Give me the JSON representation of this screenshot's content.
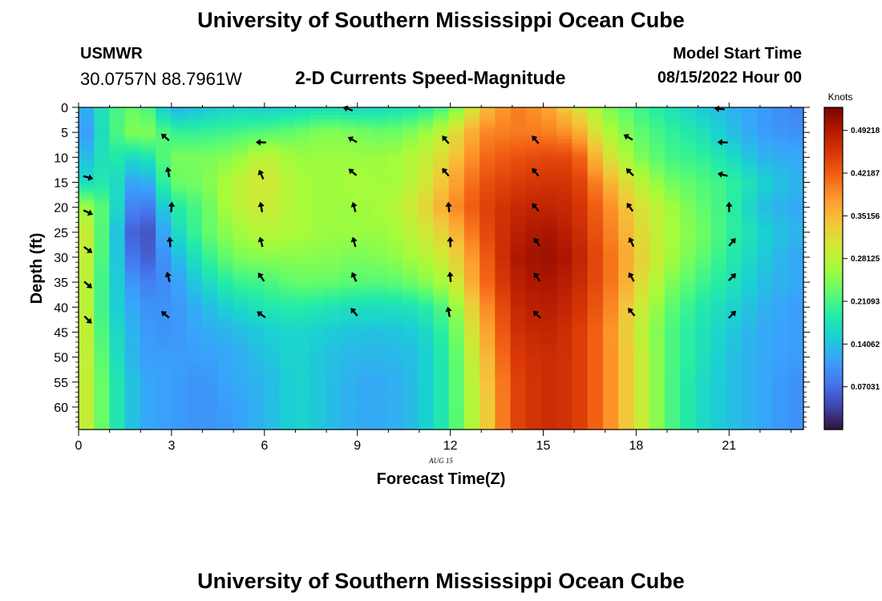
{
  "page": {
    "title": "University of Southern Mississippi Ocean Cube",
    "station": "USMWR",
    "coordinates": "30.0757N  88.7961W",
    "model_start_label": "Model Start Time",
    "model_start_value": "08/15/2022 Hour 00",
    "date_annotation": "AUG 15",
    "footer_title": "University of Southern Mississippi Ocean Cube"
  },
  "chart_data": {
    "type": "heatmap",
    "title": "2-D Currents Speed-Magnitude",
    "xlabel": "Forecast Time(Z)",
    "ylabel": "Depth (ft)",
    "xlim": [
      0,
      23.4
    ],
    "ylim": [
      0,
      64.5
    ],
    "x_ticks": [
      0,
      3,
      6,
      9,
      12,
      15,
      18,
      21
    ],
    "y_ticks": [
      0,
      5,
      10,
      15,
      20,
      25,
      30,
      35,
      40,
      45,
      50,
      55,
      60
    ],
    "colorbar": {
      "label": "Knots",
      "range": [
        0,
        0.53
      ],
      "ticks": [
        "0.49218",
        "0.42187",
        "0.35156",
        "0.28125",
        "0.21093",
        "0.14062",
        "0.07031"
      ],
      "tick_values": [
        0.49218,
        0.42187,
        0.35156,
        0.28125,
        0.21093,
        0.14062,
        0.07031
      ],
      "colors": [
        "#30123b",
        "#4145ab",
        "#4675ed",
        "#39a2fc",
        "#1bcfd4",
        "#24eca6",
        "#61fc6c",
        "#a4fc3b",
        "#d1e834",
        "#f3c63a",
        "#fe9b2d",
        "#f36315",
        "#d93806",
        "#b11901",
        "#7a0403"
      ]
    },
    "speed_profiles": {
      "depths": [
        0,
        5,
        10,
        15,
        20,
        25,
        30,
        35,
        40,
        45,
        50,
        55,
        60,
        64.5
      ],
      "times": [
        0.0,
        1.0,
        2.0,
        3.0,
        4.0,
        5.0,
        6.0,
        7.0,
        8.0,
        9.0,
        10.0,
        11.0,
        12.0,
        13.0,
        14.0,
        15.0,
        16.0,
        17.0,
        18.0,
        19.0,
        20.0,
        21.0,
        22.0,
        23.0
      ],
      "values": [
        [
          0.1,
          0.2,
          0.24,
          0.12,
          0.14,
          0.16,
          0.15,
          0.16,
          0.17,
          0.16,
          0.17,
          0.18,
          0.22,
          0.34,
          0.4,
          0.38,
          0.32,
          0.25,
          0.21,
          0.18,
          0.15,
          0.13,
          0.11,
          0.09
        ],
        [
          0.08,
          0.2,
          0.26,
          0.2,
          0.2,
          0.21,
          0.22,
          0.23,
          0.25,
          0.24,
          0.23,
          0.25,
          0.3,
          0.39,
          0.4,
          0.4,
          0.38,
          0.28,
          0.23,
          0.2,
          0.18,
          0.14,
          0.11,
          0.1
        ],
        [
          0.12,
          0.19,
          0.16,
          0.24,
          0.24,
          0.25,
          0.29,
          0.26,
          0.26,
          0.26,
          0.26,
          0.28,
          0.33,
          0.41,
          0.43,
          0.44,
          0.44,
          0.32,
          0.25,
          0.21,
          0.2,
          0.17,
          0.13,
          0.12
        ],
        [
          0.16,
          0.19,
          0.09,
          0.23,
          0.24,
          0.28,
          0.31,
          0.27,
          0.26,
          0.27,
          0.26,
          0.29,
          0.36,
          0.43,
          0.45,
          0.46,
          0.46,
          0.37,
          0.29,
          0.24,
          0.22,
          0.2,
          0.16,
          0.13
        ],
        [
          0.28,
          0.2,
          0.05,
          0.18,
          0.22,
          0.28,
          0.3,
          0.27,
          0.26,
          0.26,
          0.27,
          0.31,
          0.38,
          0.44,
          0.47,
          0.48,
          0.47,
          0.4,
          0.32,
          0.27,
          0.23,
          0.2,
          0.14,
          0.12
        ],
        [
          0.33,
          0.18,
          0.02,
          0.15,
          0.22,
          0.26,
          0.28,
          0.27,
          0.26,
          0.26,
          0.26,
          0.29,
          0.34,
          0.43,
          0.48,
          0.5,
          0.48,
          0.41,
          0.33,
          0.27,
          0.24,
          0.2,
          0.16,
          0.13
        ],
        [
          0.32,
          0.18,
          0.04,
          0.12,
          0.19,
          0.24,
          0.25,
          0.25,
          0.25,
          0.24,
          0.25,
          0.27,
          0.31,
          0.41,
          0.49,
          0.51,
          0.49,
          0.42,
          0.34,
          0.27,
          0.23,
          0.19,
          0.15,
          0.12
        ],
        [
          0.32,
          0.17,
          0.08,
          0.1,
          0.16,
          0.2,
          0.21,
          0.23,
          0.23,
          0.22,
          0.22,
          0.24,
          0.28,
          0.4,
          0.48,
          0.5,
          0.48,
          0.42,
          0.33,
          0.25,
          0.21,
          0.18,
          0.14,
          0.12
        ],
        [
          0.32,
          0.17,
          0.1,
          0.1,
          0.13,
          0.16,
          0.18,
          0.19,
          0.18,
          0.17,
          0.17,
          0.18,
          0.23,
          0.37,
          0.47,
          0.49,
          0.47,
          0.41,
          0.31,
          0.23,
          0.19,
          0.16,
          0.13,
          0.11
        ],
        [
          0.32,
          0.18,
          0.11,
          0.1,
          0.12,
          0.13,
          0.15,
          0.16,
          0.15,
          0.14,
          0.14,
          0.15,
          0.21,
          0.35,
          0.46,
          0.48,
          0.46,
          0.4,
          0.3,
          0.22,
          0.18,
          0.15,
          0.12,
          0.11
        ],
        [
          0.32,
          0.19,
          0.11,
          0.11,
          0.11,
          0.12,
          0.14,
          0.16,
          0.14,
          0.13,
          0.13,
          0.14,
          0.2,
          0.33,
          0.45,
          0.47,
          0.46,
          0.4,
          0.31,
          0.22,
          0.18,
          0.14,
          0.12,
          0.11
        ],
        [
          0.32,
          0.2,
          0.12,
          0.11,
          0.1,
          0.12,
          0.13,
          0.16,
          0.14,
          0.12,
          0.12,
          0.14,
          0.2,
          0.32,
          0.44,
          0.47,
          0.46,
          0.4,
          0.31,
          0.22,
          0.17,
          0.14,
          0.12,
          0.1
        ],
        [
          0.32,
          0.2,
          0.12,
          0.11,
          0.1,
          0.11,
          0.13,
          0.16,
          0.14,
          0.12,
          0.12,
          0.14,
          0.2,
          0.31,
          0.44,
          0.47,
          0.46,
          0.4,
          0.31,
          0.22,
          0.17,
          0.14,
          0.12,
          0.1
        ],
        [
          0.32,
          0.2,
          0.12,
          0.11,
          0.1,
          0.11,
          0.13,
          0.16,
          0.14,
          0.12,
          0.12,
          0.14,
          0.2,
          0.31,
          0.44,
          0.47,
          0.46,
          0.4,
          0.31,
          0.22,
          0.17,
          0.14,
          0.12,
          0.1
        ]
      ]
    },
    "vector_arrows": [
      {
        "t": 0.3,
        "depth": 14,
        "angle": 15
      },
      {
        "t": 0.3,
        "depth": 21,
        "angle": 25
      },
      {
        "t": 0.3,
        "depth": 28.5,
        "angle": 35
      },
      {
        "t": 0.3,
        "depth": 35.5,
        "angle": 40
      },
      {
        "t": 0.3,
        "depth": 42.5,
        "angle": 45
      },
      {
        "t": 2.8,
        "depth": 6,
        "angle": -140
      },
      {
        "t": 2.9,
        "depth": 13,
        "angle": -100
      },
      {
        "t": 3.0,
        "depth": 20,
        "angle": -85
      },
      {
        "t": 2.95,
        "depth": 27,
        "angle": -95
      },
      {
        "t": 2.9,
        "depth": 34,
        "angle": -105
      },
      {
        "t": 2.8,
        "depth": 41.5,
        "angle": -140
      },
      {
        "t": 5.9,
        "depth": 7,
        "angle": -178
      },
      {
        "t": 5.9,
        "depth": 13.5,
        "angle": -115
      },
      {
        "t": 5.9,
        "depth": 20,
        "angle": -100
      },
      {
        "t": 5.9,
        "depth": 27,
        "angle": -105
      },
      {
        "t": 5.9,
        "depth": 34,
        "angle": -125
      },
      {
        "t": 5.9,
        "depth": 41.5,
        "angle": -145
      },
      {
        "t": 8.7,
        "depth": 0.3,
        "angle": -160
      },
      {
        "t": 8.85,
        "depth": 6.5,
        "angle": -150
      },
      {
        "t": 8.85,
        "depth": 13,
        "angle": -140
      },
      {
        "t": 8.9,
        "depth": 20,
        "angle": -105
      },
      {
        "t": 8.9,
        "depth": 27,
        "angle": -105
      },
      {
        "t": 8.9,
        "depth": 34,
        "angle": -115
      },
      {
        "t": 8.9,
        "depth": 41,
        "angle": -130
      },
      {
        "t": 11.85,
        "depth": 6.5,
        "angle": -130
      },
      {
        "t": 11.85,
        "depth": 13,
        "angle": -130
      },
      {
        "t": 11.95,
        "depth": 20,
        "angle": -95
      },
      {
        "t": 12.0,
        "depth": 27,
        "angle": -92
      },
      {
        "t": 12.0,
        "depth": 34,
        "angle": -95
      },
      {
        "t": 11.95,
        "depth": 41,
        "angle": -100
      },
      {
        "t": 14.75,
        "depth": 6.5,
        "angle": -130
      },
      {
        "t": 14.75,
        "depth": 13,
        "angle": -130
      },
      {
        "t": 14.75,
        "depth": 20,
        "angle": -130
      },
      {
        "t": 14.8,
        "depth": 27,
        "angle": -125
      },
      {
        "t": 14.8,
        "depth": 34,
        "angle": -125
      },
      {
        "t": 14.8,
        "depth": 41.5,
        "angle": -135
      },
      {
        "t": 17.75,
        "depth": 6,
        "angle": -150
      },
      {
        "t": 17.8,
        "depth": 13,
        "angle": -135
      },
      {
        "t": 17.8,
        "depth": 20,
        "angle": -125
      },
      {
        "t": 17.85,
        "depth": 27,
        "angle": -115
      },
      {
        "t": 17.85,
        "depth": 34,
        "angle": -120
      },
      {
        "t": 17.85,
        "depth": 41,
        "angle": -130
      },
      {
        "t": 20.7,
        "depth": 0.3,
        "angle": -175
      },
      {
        "t": 20.8,
        "depth": 7,
        "angle": -178
      },
      {
        "t": 20.8,
        "depth": 13.5,
        "angle": -165
      },
      {
        "t": 21.0,
        "depth": 20,
        "angle": -90
      },
      {
        "t": 21.1,
        "depth": 27,
        "angle": -50
      },
      {
        "t": 21.1,
        "depth": 34,
        "angle": -45
      },
      {
        "t": 21.1,
        "depth": 41.5,
        "angle": -45
      }
    ]
  }
}
